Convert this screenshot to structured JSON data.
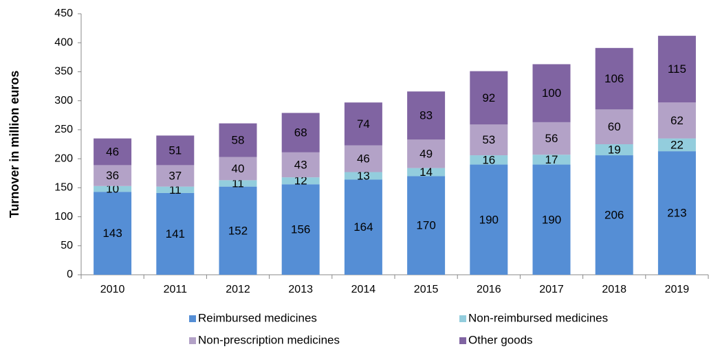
{
  "chart_data": {
    "type": "stacked_bar",
    "ylabel": "Turnover in million euros",
    "categories": [
      "2010",
      "2011",
      "2012",
      "2013",
      "2014",
      "2015",
      "2016",
      "2017",
      "2018",
      "2019"
    ],
    "series": [
      {
        "name": "Reimbursed medicines",
        "color": "#558ed5",
        "values": [
          143,
          141,
          152,
          156,
          164,
          170,
          190,
          190,
          206,
          213
        ]
      },
      {
        "name": "Non-reimbursed medicines",
        "color": "#93cddd",
        "values": [
          10,
          11,
          11,
          12,
          13,
          14,
          16,
          17,
          19,
          22
        ]
      },
      {
        "name": "Non-prescription medicines",
        "color": "#b3a2c7",
        "values": [
          36,
          37,
          40,
          43,
          46,
          49,
          53,
          56,
          60,
          62
        ]
      },
      {
        "name": "Other goods",
        "color": "#8064a2",
        "values": [
          46,
          51,
          58,
          68,
          74,
          83,
          92,
          100,
          106,
          115
        ]
      }
    ],
    "ylim": [
      0,
      450
    ],
    "yticks": [
      0,
      50,
      100,
      150,
      200,
      250,
      300,
      350,
      400,
      450
    ],
    "grid": false,
    "legend": "bottom"
  }
}
